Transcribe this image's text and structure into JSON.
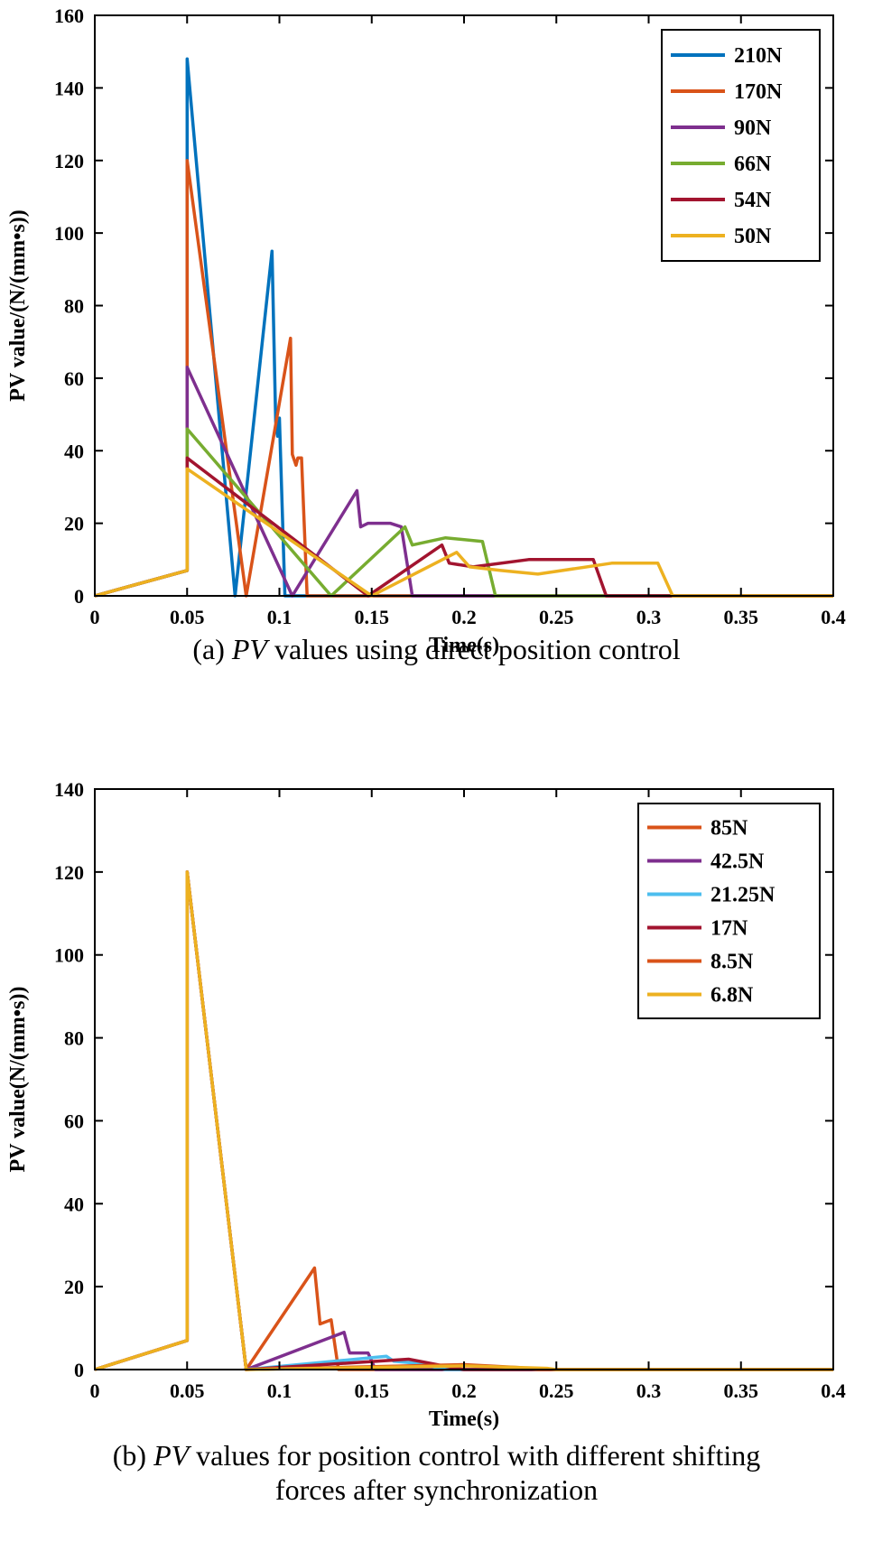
{
  "chart_data": [
    {
      "type": "line",
      "caption": {
        "label": "(a)",
        "italic": "PV",
        "rest": "values using direct position control"
      },
      "xlabel": "Time(s)",
      "ylabel": "PV value/(N/(mm•s))",
      "xlim": [
        0,
        0.4
      ],
      "ylim": [
        0,
        160
      ],
      "xticks": [
        "0",
        "0.05",
        "0.1",
        "0.15",
        "0.2",
        "0.25",
        "0.3",
        "0.35",
        "0.4"
      ],
      "yticks": [
        "0",
        "20",
        "40",
        "60",
        "80",
        "100",
        "120",
        "140",
        "160"
      ],
      "grid": false,
      "legend_position": "top-right",
      "series": [
        {
          "name": "210N",
          "color": "#0072BD",
          "points": [
            [
              0,
              0
            ],
            [
              0.05,
              7
            ],
            [
              0.05,
              148
            ],
            [
              0.076,
              0
            ],
            [
              0.096,
              95
            ],
            [
              0.098,
              48
            ],
            [
              0.099,
              44
            ],
            [
              0.1,
              49
            ],
            [
              0.103,
              0
            ],
            [
              0.4,
              0
            ]
          ]
        },
        {
          "name": "170N",
          "color": "#D95319",
          "points": [
            [
              0,
              0
            ],
            [
              0.05,
              7
            ],
            [
              0.05,
              120
            ],
            [
              0.082,
              0
            ],
            [
              0.106,
              71
            ],
            [
              0.107,
              39
            ],
            [
              0.109,
              36
            ],
            [
              0.11,
              38
            ],
            [
              0.112,
              38
            ],
            [
              0.115,
              0
            ],
            [
              0.4,
              0
            ]
          ]
        },
        {
          "name": "90N",
          "color": "#7E2F8E",
          "points": [
            [
              0,
              0
            ],
            [
              0.05,
              7
            ],
            [
              0.05,
              63
            ],
            [
              0.107,
              0
            ],
            [
              0.142,
              29
            ],
            [
              0.144,
              19
            ],
            [
              0.148,
              20
            ],
            [
              0.16,
              20
            ],
            [
              0.166,
              19
            ],
            [
              0.172,
              0
            ],
            [
              0.4,
              0
            ]
          ]
        },
        {
          "name": "66N",
          "color": "#77AC30",
          "points": [
            [
              0,
              0
            ],
            [
              0.05,
              7
            ],
            [
              0.05,
              46
            ],
            [
              0.128,
              0
            ],
            [
              0.168,
              19
            ],
            [
              0.172,
              14
            ],
            [
              0.19,
              16
            ],
            [
              0.21,
              15
            ],
            [
              0.217,
              0
            ],
            [
              0.4,
              0
            ]
          ]
        },
        {
          "name": "54N",
          "color": "#A2142F",
          "points": [
            [
              0,
              0
            ],
            [
              0.05,
              7
            ],
            [
              0.05,
              38
            ],
            [
              0.148,
              0
            ],
            [
              0.188,
              14
            ],
            [
              0.192,
              9
            ],
            [
              0.205,
              8
            ],
            [
              0.235,
              10
            ],
            [
              0.27,
              10
            ],
            [
              0.277,
              0
            ],
            [
              0.4,
              0
            ]
          ]
        },
        {
          "name": "50N",
          "color": "#EDB120",
          "points": [
            [
              0,
              0
            ],
            [
              0.05,
              7
            ],
            [
              0.05,
              35
            ],
            [
              0.15,
              0
            ],
            [
              0.196,
              12
            ],
            [
              0.203,
              8
            ],
            [
              0.22,
              7
            ],
            [
              0.24,
              6
            ],
            [
              0.28,
              9
            ],
            [
              0.305,
              9
            ],
            [
              0.313,
              0
            ],
            [
              0.4,
              0
            ]
          ]
        }
      ]
    },
    {
      "type": "line",
      "caption": {
        "label": "(b)",
        "italic": "PV",
        "rest": "values for position control with different shifting",
        "line2": "forces after synchronization"
      },
      "xlabel": "Time(s)",
      "ylabel": "PV value(N/(mm•s))",
      "xlim": [
        0,
        0.4
      ],
      "ylim": [
        0,
        140
      ],
      "xticks": [
        "0",
        "0.05",
        "0.1",
        "0.15",
        "0.2",
        "0.25",
        "0.3",
        "0.35",
        "0.4"
      ],
      "yticks": [
        "0",
        "20",
        "40",
        "60",
        "80",
        "100",
        "120",
        "140"
      ],
      "grid": false,
      "legend_position": "top-right",
      "series": [
        {
          "name": "85N",
          "color": "#D95319",
          "points": [
            [
              0,
              0
            ],
            [
              0.05,
              7
            ],
            [
              0.05,
              120
            ],
            [
              0.082,
              0
            ],
            [
              0.119,
              24.5
            ],
            [
              0.122,
              11
            ],
            [
              0.128,
              12
            ],
            [
              0.132,
              0
            ],
            [
              0.4,
              0
            ]
          ]
        },
        {
          "name": "42.5N",
          "color": "#7E2F8E",
          "points": [
            [
              0,
              0
            ],
            [
              0.05,
              7
            ],
            [
              0.05,
              120
            ],
            [
              0.082,
              0
            ],
            [
              0.135,
              9
            ],
            [
              0.138,
              4
            ],
            [
              0.148,
              4
            ],
            [
              0.152,
              0
            ],
            [
              0.4,
              0
            ]
          ]
        },
        {
          "name": "21.25N",
          "color": "#4DBEEE",
          "points": [
            [
              0,
              0
            ],
            [
              0.05,
              7
            ],
            [
              0.05,
              120
            ],
            [
              0.082,
              0
            ],
            [
              0.158,
              3.2
            ],
            [
              0.162,
              2
            ],
            [
              0.175,
              1.5
            ],
            [
              0.19,
              0
            ],
            [
              0.4,
              0
            ]
          ]
        },
        {
          "name": "17N",
          "color": "#A2142F",
          "points": [
            [
              0,
              0
            ],
            [
              0.05,
              7
            ],
            [
              0.05,
              120
            ],
            [
              0.082,
              0
            ],
            [
              0.17,
              2.5
            ],
            [
              0.19,
              0.8
            ],
            [
              0.2,
              0
            ],
            [
              0.4,
              0
            ]
          ]
        },
        {
          "name": "8.5N",
          "color": "#D95319",
          "points": [
            [
              0,
              0
            ],
            [
              0.05,
              7
            ],
            [
              0.05,
              120
            ],
            [
              0.082,
              0
            ],
            [
              0.2,
              1.2
            ],
            [
              0.23,
              0.5
            ],
            [
              0.24,
              0
            ],
            [
              0.4,
              0
            ]
          ]
        },
        {
          "name": "6.8N",
          "color": "#EDB120",
          "points": [
            [
              0,
              0
            ],
            [
              0.05,
              7
            ],
            [
              0.05,
              120
            ],
            [
              0.082,
              0
            ],
            [
              0.2,
              0.9
            ],
            [
              0.245,
              0.3
            ],
            [
              0.25,
              0
            ],
            [
              0.4,
              0
            ]
          ]
        }
      ]
    }
  ]
}
